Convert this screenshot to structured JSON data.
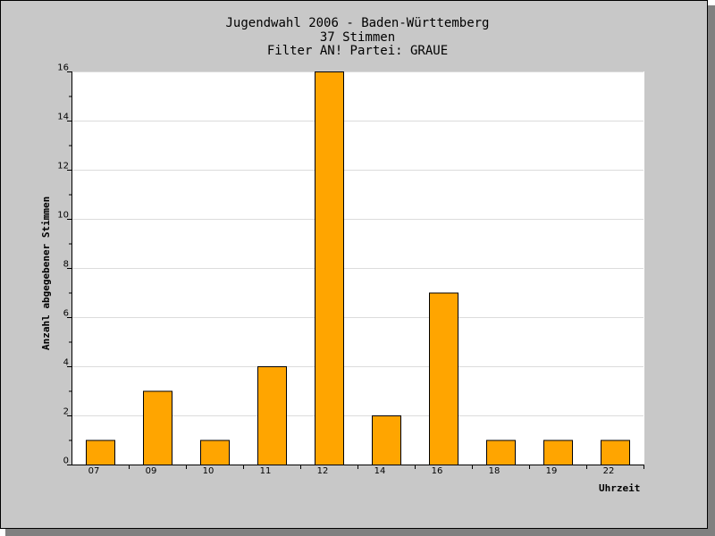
{
  "titles": {
    "line1": "Jugendwahl 2006 - Baden-Württemberg",
    "line2": "37 Stimmen",
    "line3": "Filter AN! Partei: GRAUE"
  },
  "colors": {
    "bar": "#ffa500",
    "background": "#c8c8c8",
    "plot": "#ffffff"
  },
  "chart_data": {
    "type": "bar",
    "title": "Jugendwahl 2006 - Baden-Württemberg",
    "subtitle": [
      "37 Stimmen",
      "Filter AN! Partei: GRAUE"
    ],
    "xlabel": "Uhrzeit",
    "ylabel": "Anzahl abgegebener Stimmen",
    "categories": [
      "07",
      "09",
      "10",
      "11",
      "12",
      "14",
      "16",
      "18",
      "19",
      "22"
    ],
    "values": [
      1,
      3,
      1,
      4,
      16,
      2,
      7,
      1,
      1,
      1
    ],
    "ylim": [
      0,
      16
    ],
    "yticks": [
      0,
      2,
      4,
      6,
      8,
      10,
      12,
      14,
      16
    ],
    "grid": true,
    "legend": "none"
  }
}
